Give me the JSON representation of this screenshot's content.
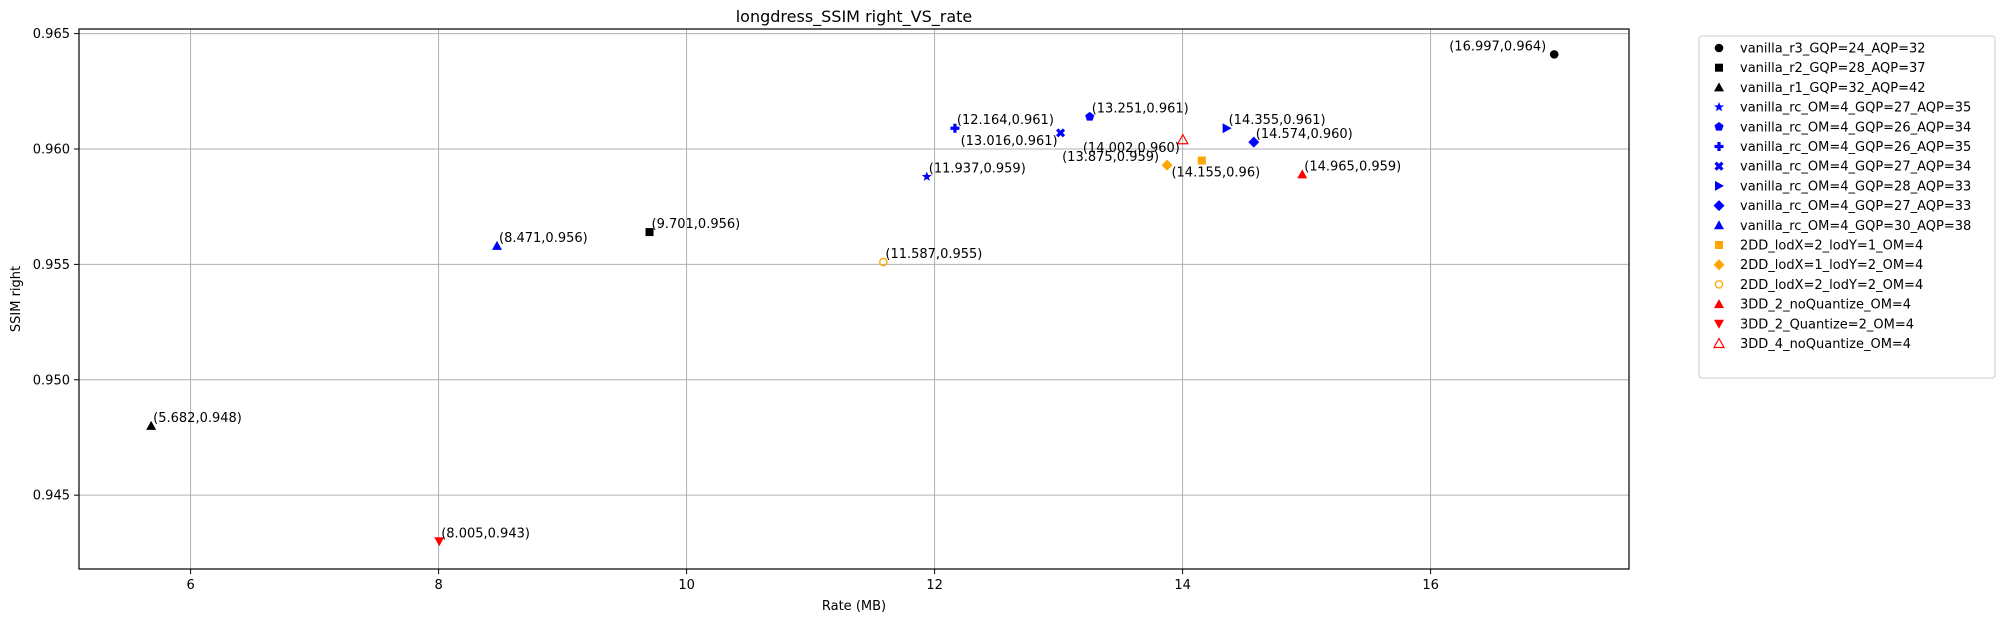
{
  "chart_data": {
    "type": "scatter",
    "title": "longdress_SSIM right_VS_rate",
    "xlabel": "Rate (MB)",
    "ylabel": "SSIM right",
    "xlim": [
      5.1,
      17.6
    ],
    "ylim": [
      0.9418,
      0.9652
    ],
    "xticks": [
      6,
      8,
      10,
      12,
      14,
      16
    ],
    "yticks": [
      0.945,
      0.95,
      0.955,
      0.96,
      0.965
    ],
    "xtick_labels": [
      "6",
      "8",
      "10",
      "12",
      "14",
      "16"
    ],
    "ytick_labels": [
      "0.945",
      "0.950",
      "0.955",
      "0.960",
      "0.965"
    ],
    "grid": true,
    "legend_position": "outside-top-right",
    "series": [
      {
        "name": "vanilla_r3_GQP=24_AQP=32",
        "marker": "circle",
        "color": "#000000",
        "filled": true,
        "points": [
          {
            "x": 16.997,
            "y": 0.9641,
            "label": "(16.997,0.964)",
            "anchor": "left"
          }
        ]
      },
      {
        "name": "vanilla_r2_GQP=28_AQP=37",
        "marker": "square",
        "color": "#000000",
        "filled": true,
        "points": [
          {
            "x": 9.701,
            "y": 0.9564,
            "label": "(9.701,0.956)",
            "anchor": "right"
          }
        ]
      },
      {
        "name": "vanilla_r1_GQP=32_AQP=42",
        "marker": "triangle-up",
        "color": "#000000",
        "filled": true,
        "points": [
          {
            "x": 5.682,
            "y": 0.948,
            "label": "(5.682,0.948)",
            "anchor": "right"
          }
        ]
      },
      {
        "name": "vanilla_rc_OM=4_GQP=27_AQP=35",
        "marker": "star",
        "color": "#0000ff",
        "filled": true,
        "points": [
          {
            "x": 11.937,
            "y": 0.9588,
            "label": "(11.937,0.959)",
            "anchor": "right"
          }
        ]
      },
      {
        "name": "vanilla_rc_OM=4_GQP=26_AQP=34",
        "marker": "pentagon",
        "color": "#0000ff",
        "filled": true,
        "points": [
          {
            "x": 13.251,
            "y": 0.9614,
            "label": "(13.251,0.961)",
            "anchor": "right"
          }
        ]
      },
      {
        "name": "vanilla_rc_OM=4_GQP=26_AQP=35",
        "marker": "plus",
        "color": "#0000ff",
        "filled": true,
        "points": [
          {
            "x": 12.164,
            "y": 0.9609,
            "label": "(12.164,0.961)",
            "anchor": "right"
          }
        ]
      },
      {
        "name": "vanilla_rc_OM=4_GQP=27_AQP=34",
        "marker": "x",
        "color": "#0000ff",
        "filled": true,
        "points": [
          {
            "x": 13.016,
            "y": 0.9607,
            "label": "(13.016,0.961)",
            "anchor": "left-below"
          }
        ]
      },
      {
        "name": "vanilla_rc_OM=4_GQP=28_AQP=33",
        "marker": "triangle-right",
        "color": "#0000ff",
        "filled": true,
        "points": [
          {
            "x": 14.355,
            "y": 0.9609,
            "label": "(14.355,0.961)",
            "anchor": "right"
          }
        ]
      },
      {
        "name": "vanilla_rc_OM=4_GQP=27_AQP=33",
        "marker": "diamond",
        "color": "#0000ff",
        "filled": true,
        "points": [
          {
            "x": 14.574,
            "y": 0.9603,
            "label": "(14.574,0.960)",
            "anchor": "right"
          }
        ]
      },
      {
        "name": "vanilla_rc_OM=4_GQP=30_AQP=38",
        "marker": "triangle-up",
        "color": "#0000ff",
        "filled": true,
        "points": [
          {
            "x": 8.471,
            "y": 0.9558,
            "label": "(8.471,0.956)",
            "anchor": "right"
          }
        ]
      },
      {
        "name": "2DD_lodX=2_lodY=1_OM=4",
        "marker": "square",
        "color": "#ffa500",
        "filled": true,
        "points": [
          {
            "x": 14.155,
            "y": 0.9595,
            "label": "(14.155,0.96)",
            "anchor": "right-below"
          }
        ]
      },
      {
        "name": "2DD_lodX=1_lodY=2_OM=4",
        "marker": "diamond",
        "color": "#ffa500",
        "filled": true,
        "points": [
          {
            "x": 13.875,
            "y": 0.9593,
            "label": "(13.875,0.959)",
            "anchor": "left"
          }
        ]
      },
      {
        "name": "2DD_lodX=2_lodY=2_OM=4",
        "marker": "octagon-open",
        "color": "#ffa500",
        "filled": false,
        "points": [
          {
            "x": 11.587,
            "y": 0.9551,
            "label": "(11.587,0.955)",
            "anchor": "right"
          }
        ]
      },
      {
        "name": "3DD_2_noQuantize_OM=4",
        "marker": "triangle-up",
        "color": "#ff0000",
        "filled": true,
        "points": [
          {
            "x": 14.965,
            "y": 0.9589,
            "label": "(14.965,0.959)",
            "anchor": "right"
          }
        ]
      },
      {
        "name": "3DD_2_Quantize=2_OM=4",
        "marker": "triangle-down",
        "color": "#ff0000",
        "filled": true,
        "points": [
          {
            "x": 8.005,
            "y": 0.943,
            "label": "(8.005,0.943)",
            "anchor": "right"
          }
        ]
      },
      {
        "name": "3DD_4_noQuantize_OM=4",
        "marker": "triangle-up",
        "color": "#ff0000",
        "filled": false,
        "points": [
          {
            "x": 14.002,
            "y": 0.9604,
            "label": "(14.002,0.960)",
            "anchor": "left-below"
          }
        ]
      }
    ]
  }
}
